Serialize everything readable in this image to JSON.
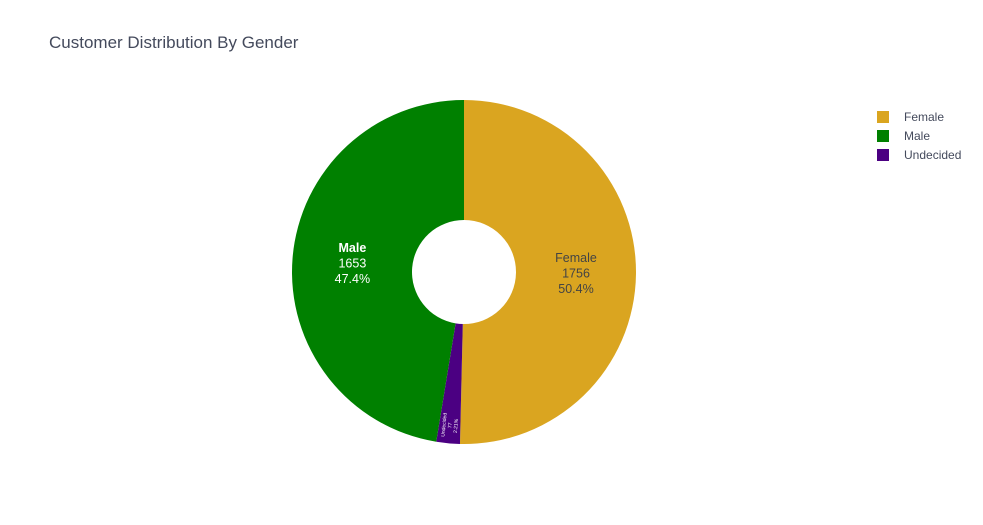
{
  "chart_data": {
    "type": "pie",
    "title": "Customer Distribution By Gender",
    "hole": true,
    "legend_position": "top-right",
    "slices": [
      {
        "label": "Female",
        "value": 1756,
        "percent_label": "50.4%",
        "color": "#daa520",
        "text_color": "#444444"
      },
      {
        "label": "Undecided",
        "value": 77,
        "percent_label": "2.21%",
        "color": "#4b0082",
        "text_color": "#ffffff"
      },
      {
        "label": "Male",
        "value": 1653,
        "percent_label": "47.4%",
        "color": "#008000",
        "text_color": "#ffffff"
      }
    ],
    "legend": [
      {
        "label": "Female",
        "color": "#daa520"
      },
      {
        "label": "Male",
        "color": "#008000"
      },
      {
        "label": "Undecided",
        "color": "#4b0082"
      }
    ]
  }
}
